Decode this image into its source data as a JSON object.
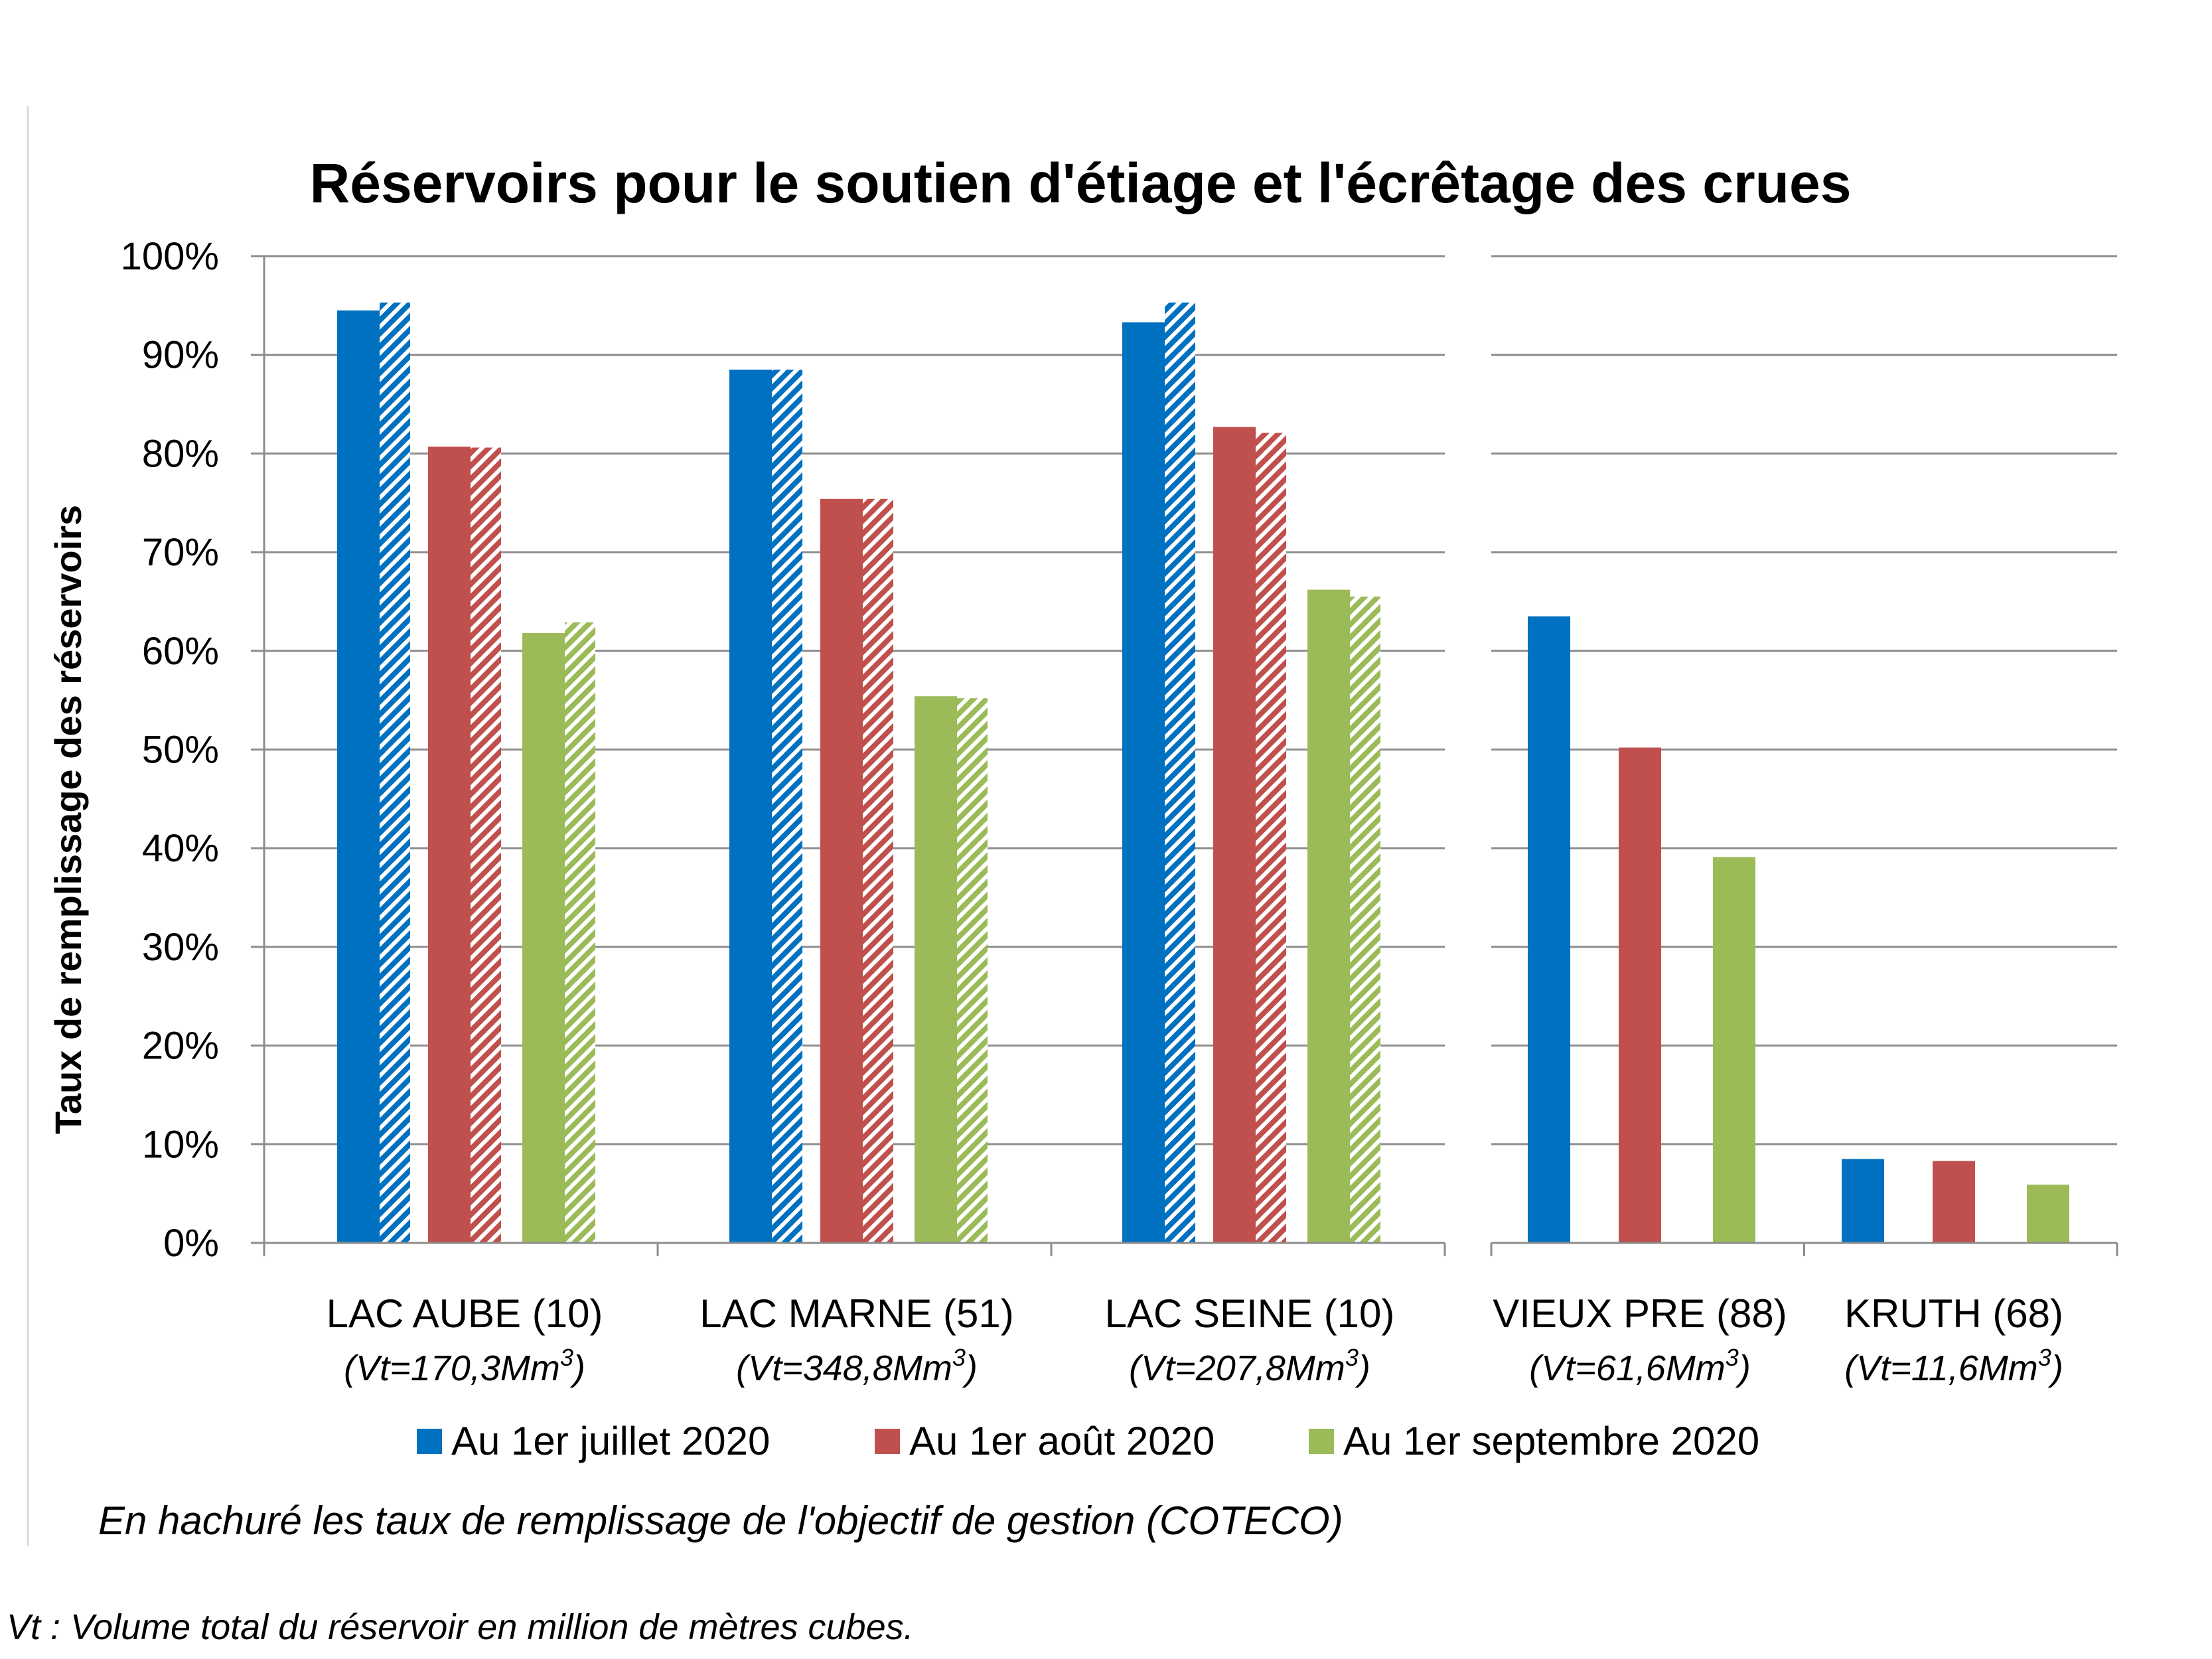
{
  "chart_data": {
    "type": "bar",
    "title": "Réservoirs pour le soutien d'étiage et l'écrêtage des crues",
    "ylabel": "Taux de remplissage des réservoirs",
    "ylim": [
      0,
      100
    ],
    "y_ticks": [
      "0%",
      "10%",
      "20%",
      "30%",
      "40%",
      "50%",
      "60%",
      "70%",
      "80%",
      "90%",
      "100%"
    ],
    "grid": true,
    "legend_position": "bottom",
    "categories": [
      {
        "name": "LAC AUBE (10)",
        "volume": "(Vt=170,3Mm",
        "sup": "3",
        "volume_end": ")"
      },
      {
        "name": "LAC MARNE (51)",
        "volume": "(Vt=348,8Mm",
        "sup": "3",
        "volume_end": ")"
      },
      {
        "name": "LAC SEINE (10)",
        "volume": "(Vt=207,8Mm",
        "sup": "3",
        "volume_end": ")"
      },
      {
        "name": "VIEUX PRE (88)",
        "volume": "(Vt=61,6Mm",
        "sup": "3",
        "volume_end": ")"
      },
      {
        "name": "KRUTH (68)",
        "volume": "(Vt=11,6Mm",
        "sup": "3",
        "volume_end": ")"
      }
    ],
    "series": [
      {
        "name": "Au 1er juillet 2020",
        "color": "#0070C0",
        "values": [
          94.5,
          88.5,
          93.3,
          63.5,
          8.5
        ],
        "target": [
          95.3,
          88.5,
          95.3,
          null,
          null
        ]
      },
      {
        "name": "Au 1er août 2020",
        "color": "#C0504D",
        "values": [
          80.7,
          75.4,
          82.7,
          50.2,
          8.3
        ],
        "target": [
          80.6,
          75.4,
          82.1,
          null,
          null
        ]
      },
      {
        "name": "Au 1er septembre 2020",
        "color": "#9BBB59",
        "values": [
          61.8,
          55.4,
          66.2,
          39.1,
          5.9
        ],
        "target": [
          62.9,
          55.2,
          65.5,
          null,
          null
        ]
      }
    ],
    "note": "En hachuré les taux de remplissage de l'objectif de gestion (COTECO)",
    "footnote": "Vt : Volume total du réservoir en million de mètres cubes."
  }
}
